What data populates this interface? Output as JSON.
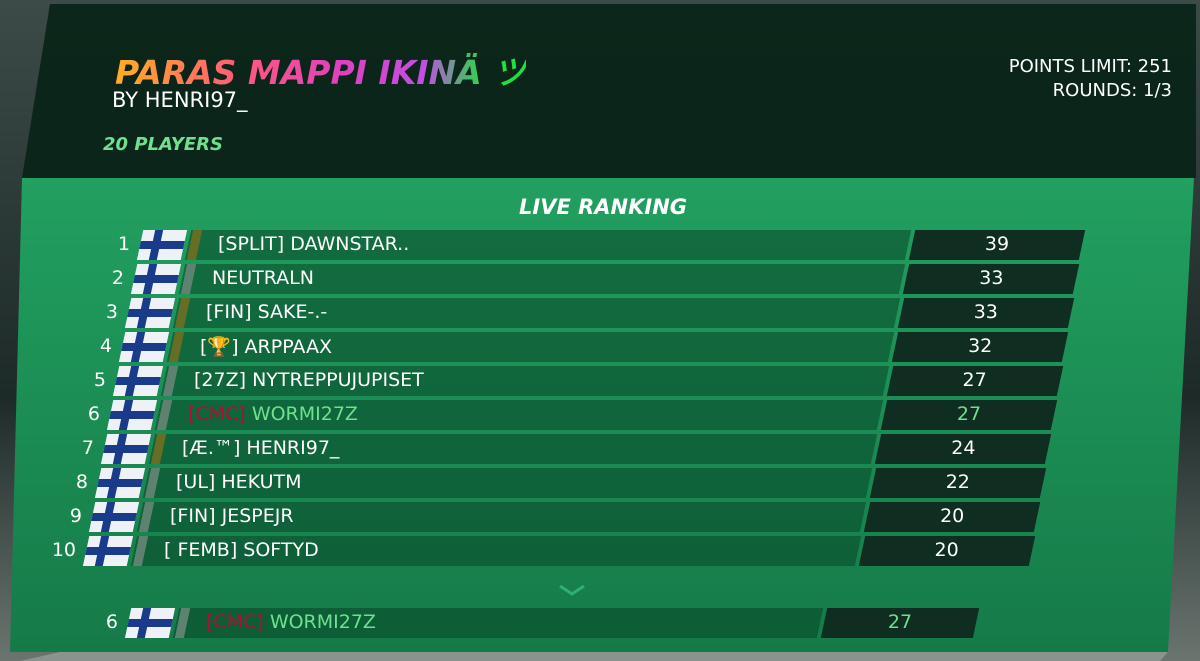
{
  "header": {
    "title": "PARAS MAPPI IKINÄ ツ",
    "author": "BY HENRI97_",
    "players": "20 PLAYERS",
    "points_limit": "POINTS LIMIT: 251",
    "rounds": "ROUNDS: 1/3"
  },
  "ranking": {
    "title": "LIVE RANKING",
    "rows": [
      {
        "rank": 1,
        "tag": "[SPLIT]",
        "name": "DAWNSTAR..",
        "score": 39
      },
      {
        "rank": 2,
        "name": "NEUTRALN",
        "score": 33
      },
      {
        "rank": 3,
        "tag": "[FIN]",
        "name": "SAKE-.-",
        "score": 33
      },
      {
        "rank": 4,
        "tag": "[🏆]",
        "name": "ARPPAAX",
        "score": 32
      },
      {
        "rank": 5,
        "tag": "[27Z]",
        "name": "NYTREPPUJUPISET",
        "score": 27
      },
      {
        "rank": 6,
        "tag": "[CMC]",
        "name": "WORMI27Z",
        "score": 27
      },
      {
        "rank": 7,
        "tag": "[Æ.™]",
        "name": "HENRI97_",
        "score": 24
      },
      {
        "rank": 8,
        "tag": "[UL]",
        "name": "HEKUTM",
        "score": 22
      },
      {
        "rank": 9,
        "tag": "[FIN]",
        "name": "JESPEJR",
        "score": 20
      },
      {
        "rank": 10,
        "tag": "[ FEMB]",
        "name": "SOFTYD",
        "score": 20
      }
    ]
  },
  "self": {
    "rank": 6,
    "tag": "[CMC]",
    "name": "WORMI27Z",
    "score": 27
  }
}
